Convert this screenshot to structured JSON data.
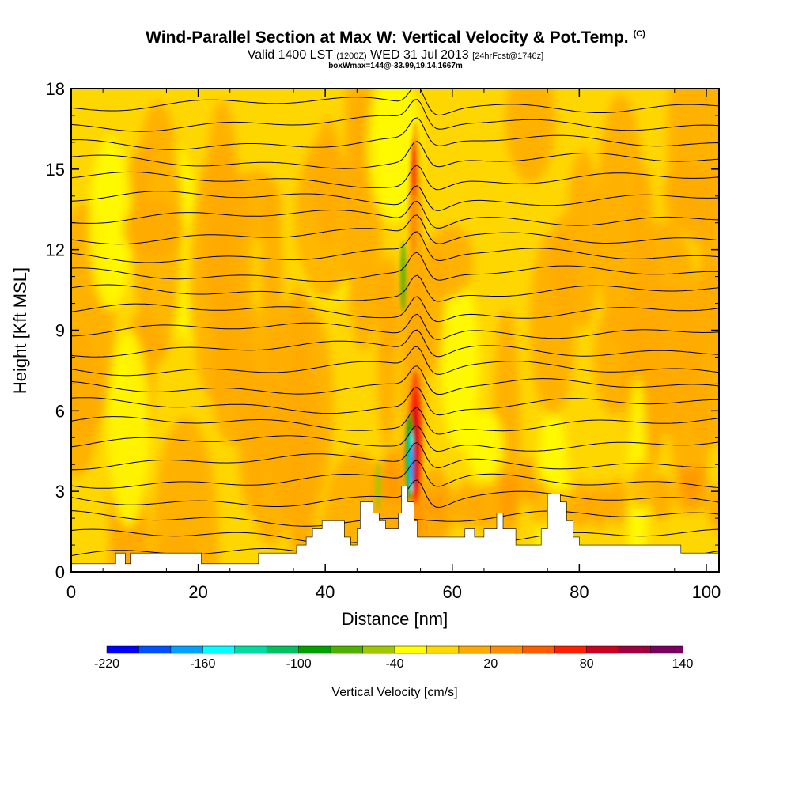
{
  "title": {
    "main": "Wind-Parallel Section at Max W: Vertical Velocity & Pot.Temp.",
    "copyright": "(C)",
    "sub_a": "Valid 1400 LST",
    "sub_b": "(1200Z)",
    "sub_c": "WED 31 Jul 2013",
    "sub_d": "[24hrFcst@1746z]",
    "box": "boxWmax=144@-33.99,19.14,1667m"
  },
  "colors": {
    "background_field": "#ffd700",
    "terrain": "#ffffff",
    "contour": "#000000"
  },
  "chart_data": {
    "type": "heatmap",
    "xlabel": "Distance [nm]",
    "ylabel": "Height [Kft MSL]",
    "xlim": [
      0,
      102
    ],
    "ylim": [
      0,
      18
    ],
    "x_ticks": [
      0,
      20,
      40,
      60,
      80,
      100
    ],
    "y_ticks": [
      0,
      3,
      6,
      9,
      12,
      15,
      18
    ],
    "grid": false,
    "colorbar": {
      "label": "Vertical Velocity [cm/s]",
      "levels": [
        -220,
        -200,
        -180,
        -160,
        -140,
        -120,
        -100,
        -80,
        -60,
        -40,
        -20,
        0,
        20,
        40,
        60,
        80,
        100,
        120,
        140
      ],
      "tick_labels": [
        -220,
        -160,
        -100,
        -40,
        20,
        80,
        140
      ],
      "colors": [
        "#0000ff",
        "#0050ff",
        "#00a0ff",
        "#00ffff",
        "#00dca0",
        "#00c060",
        "#00a000",
        "#50b000",
        "#a0c800",
        "#ffff00",
        "#ffd700",
        "#ffaa00",
        "#ff8c00",
        "#ff5a00",
        "#ff1e00",
        "#cc0020",
        "#a00040",
        "#7a0060"
      ]
    },
    "updraft": {
      "x": 54.2,
      "ymin": 2.5,
      "ymax": 7.5,
      "peak_w": 144
    },
    "downdraft": {
      "x": 53.3,
      "ymin": 2.8,
      "ymax": 5.8,
      "min_w": -200
    },
    "terrain_profile": [
      [
        0,
        0.3
      ],
      [
        7,
        0.3
      ],
      [
        7,
        0.7
      ],
      [
        8.5,
        0.7
      ],
      [
        8.5,
        0.3
      ],
      [
        9.3,
        0.3
      ],
      [
        9.3,
        0.7
      ],
      [
        20.5,
        0.7
      ],
      [
        20.5,
        0.3
      ],
      [
        29.5,
        0.3
      ],
      [
        29.5,
        0.7
      ],
      [
        35.5,
        0.7
      ],
      [
        35.5,
        1.0
      ],
      [
        37,
        1.0
      ],
      [
        37,
        1.3
      ],
      [
        38,
        1.3
      ],
      [
        38,
        1.6
      ],
      [
        39.5,
        1.6
      ],
      [
        39.5,
        1.9
      ],
      [
        43,
        1.9
      ],
      [
        43,
        1.3
      ],
      [
        44,
        1.3
      ],
      [
        44,
        1.0
      ],
      [
        45,
        1.0
      ],
      [
        45,
        1.6
      ],
      [
        45.5,
        1.6
      ],
      [
        45.5,
        2.6
      ],
      [
        47.5,
        2.6
      ],
      [
        47.5,
        2.2
      ],
      [
        48.5,
        2.2
      ],
      [
        48.5,
        1.9
      ],
      [
        49.5,
        1.9
      ],
      [
        49.5,
        1.6
      ],
      [
        51.5,
        1.6
      ],
      [
        51.5,
        2.2
      ],
      [
        52,
        2.2
      ],
      [
        52,
        3.2
      ],
      [
        53,
        3.2
      ],
      [
        53,
        2.6
      ],
      [
        54,
        2.6
      ],
      [
        54,
        1.9
      ],
      [
        54.5,
        1.9
      ],
      [
        54.5,
        1.3
      ],
      [
        62,
        1.3
      ],
      [
        62,
        1.6
      ],
      [
        63.5,
        1.6
      ],
      [
        63.5,
        1.3
      ],
      [
        65,
        1.3
      ],
      [
        65,
        1.6
      ],
      [
        67,
        1.6
      ],
      [
        67,
        2.2
      ],
      [
        68,
        2.2
      ],
      [
        68,
        1.6
      ],
      [
        70,
        1.6
      ],
      [
        70,
        1.0
      ],
      [
        74,
        1.0
      ],
      [
        74,
        1.6
      ],
      [
        75,
        1.6
      ],
      [
        75,
        2.9
      ],
      [
        77,
        2.9
      ],
      [
        77,
        2.6
      ],
      [
        78,
        2.6
      ],
      [
        78,
        1.9
      ],
      [
        79,
        1.9
      ],
      [
        79,
        1.3
      ],
      [
        80,
        1.3
      ],
      [
        80,
        1.0
      ],
      [
        96,
        1.0
      ],
      [
        96,
        0.7
      ],
      [
        102,
        0.7
      ]
    ],
    "isentrope_levels": 25
  }
}
